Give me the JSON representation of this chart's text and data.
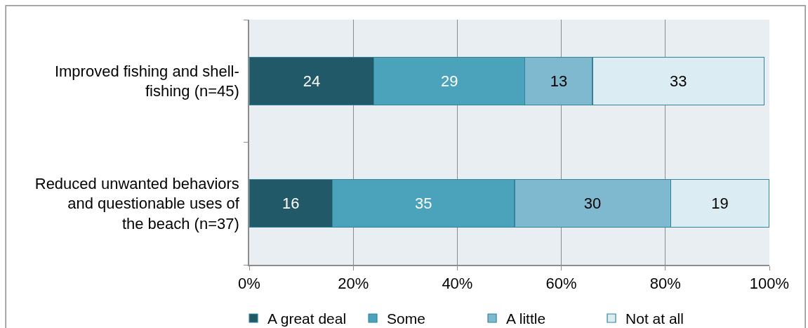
{
  "chart_data": {
    "type": "bar",
    "orientation": "horizontal",
    "stacked": true,
    "categories": [
      "Improved fishing and shell-fishing (n=45)",
      "Reduced unwanted behaviors and questionable uses of the beach (n=37)"
    ],
    "series": [
      {
        "name": "A great deal",
        "color": "#215968",
        "values": [
          24,
          16
        ]
      },
      {
        "name": "Some",
        "color": "#4aa2bb",
        "values": [
          29,
          35
        ]
      },
      {
        "name": "A little",
        "color": "#7fb9cf",
        "values": [
          13,
          30
        ]
      },
      {
        "name": "Not at all",
        "color": "#dbedf3",
        "values": [
          33,
          19
        ]
      }
    ],
    "xlim": [
      0,
      100
    ],
    "xticks": [
      {
        "value": 0,
        "label": "0%"
      },
      {
        "value": 20,
        "label": "20%"
      },
      {
        "value": 40,
        "label": "40%"
      },
      {
        "value": 60,
        "label": "60%"
      },
      {
        "value": 80,
        "label": "80%"
      },
      {
        "value": 100,
        "label": "100%"
      }
    ],
    "grid": "x",
    "legend": "bottom",
    "data_labels": true
  }
}
